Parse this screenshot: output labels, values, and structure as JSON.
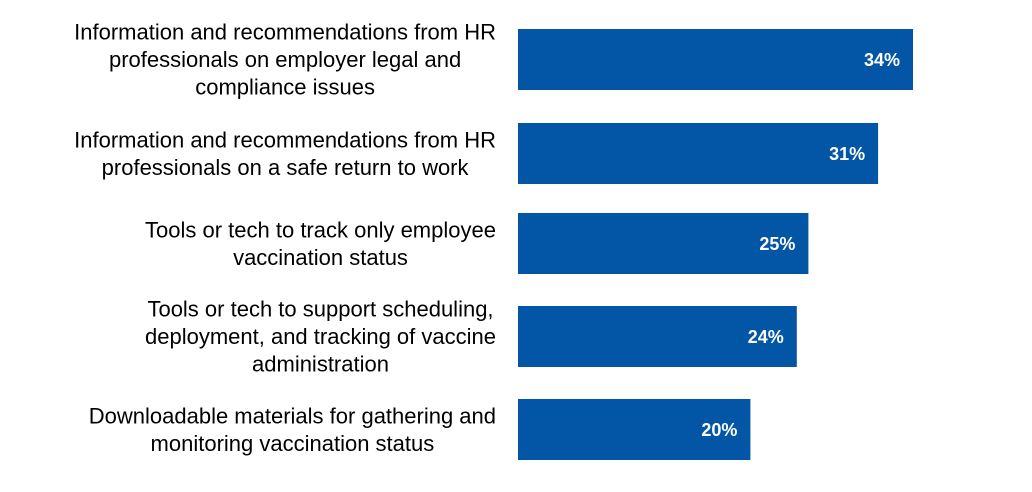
{
  "chart_data": {
    "type": "bar",
    "orientation": "horizontal",
    "categories": [
      [
        "Information and recommendations from HR",
        "professionals on employer legal and",
        "compliance issues"
      ],
      [
        "Information and recommendations from HR",
        "professionals on a safe return to work"
      ],
      [
        "Tools or tech to track only employee",
        "vaccination status"
      ],
      [
        "Tools or tech to support scheduling,",
        "deployment, and tracking of vaccine",
        "administration"
      ],
      [
        "Downloadable materials for gathering and",
        "monitoring vaccination status"
      ]
    ],
    "values": [
      34,
      31,
      25,
      24,
      20
    ],
    "value_labels": [
      "34%",
      "31%",
      "25%",
      "24%",
      "20%"
    ],
    "title": "",
    "xlabel": "",
    "ylabel": "",
    "xlim": [
      0,
      40
    ],
    "grid": false,
    "legend": "none",
    "bar_color": "#0355a5"
  }
}
